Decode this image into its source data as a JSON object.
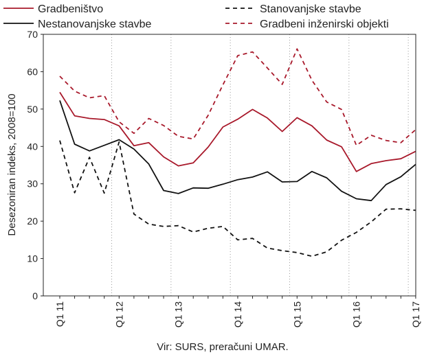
{
  "chart_data": {
    "type": "line",
    "ylabel": "Desezoniran indeks, 2008=100",
    "ylim": [
      0,
      70
    ],
    "yticks": [
      0,
      10,
      20,
      30,
      40,
      50,
      60,
      70
    ],
    "grid": "vertical dotted at year boundaries",
    "x_tick_labels": [
      "Q1 11",
      "Q1 12",
      "Q1 13",
      "Q1 14",
      "Q1 15",
      "Q1 16",
      "Q1 17"
    ],
    "x": [
      "Q1 11",
      "Q2 11",
      "Q3 11",
      "Q4 11",
      "Q1 12",
      "Q2 12",
      "Q3 12",
      "Q4 12",
      "Q1 13",
      "Q2 13",
      "Q3 13",
      "Q4 13",
      "Q1 14",
      "Q2 14",
      "Q3 14",
      "Q4 14",
      "Q1 15",
      "Q2 15",
      "Q3 15",
      "Q4 15",
      "Q1 16",
      "Q2 16",
      "Q3 16",
      "Q4 16",
      "Q1 17"
    ],
    "legend_placement": "top",
    "series": [
      {
        "name": "Gradbeništvo",
        "color": "#a8182a",
        "style": "solid",
        "values": [
          54.5,
          48.2,
          47.5,
          47.2,
          45.5,
          40.2,
          41.0,
          37.2,
          34.8,
          35.6,
          39.8,
          45.2,
          47.3,
          49.9,
          47.6,
          44.0,
          47.7,
          45.5,
          41.7,
          39.9,
          33.3,
          35.4,
          36.2,
          36.7,
          38.7
        ]
      },
      {
        "name": "Nestanovanjske stavbe",
        "color": "#111111",
        "style": "solid",
        "values": [
          52.3,
          40.6,
          38.8,
          40.3,
          41.8,
          39.3,
          35.3,
          28.2,
          27.4,
          28.9,
          28.8,
          29.9,
          31.1,
          31.8,
          33.2,
          30.5,
          30.6,
          33.3,
          31.6,
          28.0,
          26.0,
          25.5,
          29.8,
          31.9,
          35.2
        ]
      },
      {
        "name": "Stanovanjske stavbe",
        "color": "#111111",
        "style": "dashed",
        "values": [
          41.6,
          27.6,
          37.1,
          27.5,
          41.2,
          21.9,
          19.2,
          18.6,
          18.8,
          17.1,
          18.1,
          18.6,
          15.0,
          15.4,
          12.8,
          12.1,
          11.6,
          10.6,
          11.8,
          14.9,
          17.0,
          19.8,
          23.2,
          23.3,
          22.9
        ]
      },
      {
        "name": "Gradbeni inženirski objekti",
        "color": "#a8182a",
        "style": "dashed",
        "values": [
          58.8,
          54.8,
          53.0,
          53.6,
          46.6,
          43.5,
          47.5,
          45.6,
          42.7,
          42.0,
          48.3,
          56.5,
          64.3,
          65.3,
          61.0,
          56.6,
          66.1,
          57.7,
          51.9,
          49.9,
          40.3,
          43.0,
          41.6,
          41.0,
          44.5
        ]
      }
    ],
    "source": "Vir: SURS, preračuni UMAR."
  }
}
